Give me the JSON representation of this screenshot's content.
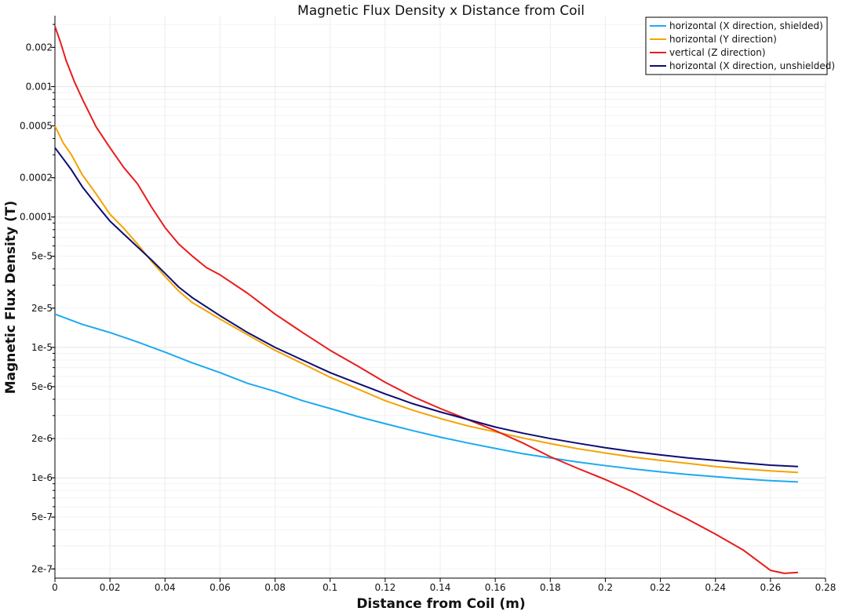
{
  "chart_data": {
    "type": "line",
    "title": "Magnetic Flux Density x Distance from Coil",
    "xlabel": "Distance from Coil (m)",
    "ylabel": "Magnetic Flux Density (T)",
    "xlim": [
      0,
      0.28
    ],
    "ylim": [
      1.7e-07,
      0.0035
    ],
    "yscale": "log",
    "grid": true,
    "legend_position": "top-right",
    "x_ticks": [
      {
        "value": 0,
        "label": "0"
      },
      {
        "value": 0.02,
        "label": "0.02"
      },
      {
        "value": 0.04,
        "label": "0.04"
      },
      {
        "value": 0.06,
        "label": "0.06"
      },
      {
        "value": 0.08,
        "label": "0.08"
      },
      {
        "value": 0.1,
        "label": "0.1"
      },
      {
        "value": 0.12,
        "label": "0.12"
      },
      {
        "value": 0.14,
        "label": "0.14"
      },
      {
        "value": 0.16,
        "label": "0.16"
      },
      {
        "value": 0.18,
        "label": "0.18"
      },
      {
        "value": 0.2,
        "label": "0.2"
      },
      {
        "value": 0.22,
        "label": "0.22"
      },
      {
        "value": 0.24,
        "label": "0.24"
      },
      {
        "value": 0.26,
        "label": "0.26"
      },
      {
        "value": 0.28,
        "label": "0.28"
      }
    ],
    "y_ticks": [
      {
        "value": 0.002,
        "label": "0.002"
      },
      {
        "value": 0.001,
        "label": "0.001"
      },
      {
        "value": 0.0005,
        "label": "0.0005"
      },
      {
        "value": 0.0002,
        "label": "0.0002"
      },
      {
        "value": 0.0001,
        "label": "0.0001"
      },
      {
        "value": 5e-05,
        "label": "5e-5"
      },
      {
        "value": 2e-05,
        "label": "2e-5"
      },
      {
        "value": 1e-05,
        "label": "1e-5"
      },
      {
        "value": 5e-06,
        "label": "5e-6"
      },
      {
        "value": 2e-06,
        "label": "2e-6"
      },
      {
        "value": 1e-06,
        "label": "1e-6"
      },
      {
        "value": 5e-07,
        "label": "5e-7"
      },
      {
        "value": 2e-07,
        "label": "2e-7"
      }
    ],
    "series": [
      {
        "name": "horizontal (X direction, shielded)",
        "color": "#1eaaf0",
        "points": [
          [
            0,
            1.8e-05
          ],
          [
            0.01,
            1.5e-05
          ],
          [
            0.02,
            1.3e-05
          ],
          [
            0.03,
            1.1e-05
          ],
          [
            0.04,
            9.2e-06
          ],
          [
            0.05,
            7.6e-06
          ],
          [
            0.06,
            6.4e-06
          ],
          [
            0.07,
            5.3e-06
          ],
          [
            0.08,
            4.6e-06
          ],
          [
            0.09,
            3.9e-06
          ],
          [
            0.1,
            3.4e-06
          ],
          [
            0.11,
            2.95e-06
          ],
          [
            0.12,
            2.6e-06
          ],
          [
            0.13,
            2.3e-06
          ],
          [
            0.14,
            2.05e-06
          ],
          [
            0.15,
            1.85e-06
          ],
          [
            0.16,
            1.68e-06
          ],
          [
            0.17,
            1.53e-06
          ],
          [
            0.18,
            1.42e-06
          ],
          [
            0.19,
            1.32e-06
          ],
          [
            0.2,
            1.24e-06
          ],
          [
            0.21,
            1.17e-06
          ],
          [
            0.22,
            1.11e-06
          ],
          [
            0.23,
            1.06e-06
          ],
          [
            0.24,
            1.02e-06
          ],
          [
            0.25,
            9.8e-07
          ],
          [
            0.26,
            9.5e-07
          ],
          [
            0.27,
            9.3e-07
          ]
        ]
      },
      {
        "name": "horizontal (Y direction)",
        "color": "#f5a300",
        "points": [
          [
            0,
            0.0005
          ],
          [
            0.003,
            0.00037
          ],
          [
            0.006,
            0.0003
          ],
          [
            0.01,
            0.00021
          ],
          [
            0.015,
            0.00015
          ],
          [
            0.02,
            0.000105
          ],
          [
            0.025,
            8.2e-05
          ],
          [
            0.03,
            6.2e-05
          ],
          [
            0.035,
            4.6e-05
          ],
          [
            0.04,
            3.5e-05
          ],
          [
            0.045,
            2.7e-05
          ],
          [
            0.05,
            2.2e-05
          ],
          [
            0.06,
            1.65e-05
          ],
          [
            0.07,
            1.25e-05
          ],
          [
            0.08,
            9.5e-06
          ],
          [
            0.09,
            7.5e-06
          ],
          [
            0.1,
            5.9e-06
          ],
          [
            0.11,
            4.8e-06
          ],
          [
            0.12,
            3.9e-06
          ],
          [
            0.13,
            3.3e-06
          ],
          [
            0.14,
            2.85e-06
          ],
          [
            0.15,
            2.5e-06
          ],
          [
            0.16,
            2.25e-06
          ],
          [
            0.17,
            2.02e-06
          ],
          [
            0.18,
            1.83e-06
          ],
          [
            0.19,
            1.67e-06
          ],
          [
            0.2,
            1.55e-06
          ],
          [
            0.21,
            1.44e-06
          ],
          [
            0.22,
            1.36e-06
          ],
          [
            0.23,
            1.29e-06
          ],
          [
            0.24,
            1.22e-06
          ],
          [
            0.25,
            1.17e-06
          ],
          [
            0.26,
            1.13e-06
          ],
          [
            0.27,
            1.1e-06
          ]
        ]
      },
      {
        "name": "vertical (Z direction)",
        "color": "#ea1c1c",
        "points": [
          [
            0,
            0.0029
          ],
          [
            0.002,
            0.0022
          ],
          [
            0.004,
            0.0016
          ],
          [
            0.007,
            0.0011
          ],
          [
            0.01,
            0.0008
          ],
          [
            0.015,
            0.00049
          ],
          [
            0.02,
            0.00034
          ],
          [
            0.025,
            0.00024
          ],
          [
            0.03,
            0.00018
          ],
          [
            0.035,
            0.00012
          ],
          [
            0.04,
            8.3e-05
          ],
          [
            0.045,
            6.2e-05
          ],
          [
            0.05,
            5e-05
          ],
          [
            0.055,
            4.1e-05
          ],
          [
            0.06,
            3.6e-05
          ],
          [
            0.07,
            2.6e-05
          ],
          [
            0.08,
            1.8e-05
          ],
          [
            0.09,
            1.3e-05
          ],
          [
            0.1,
            9.5e-06
          ],
          [
            0.11,
            7.2e-06
          ],
          [
            0.12,
            5.4e-06
          ],
          [
            0.13,
            4.2e-06
          ],
          [
            0.14,
            3.4e-06
          ],
          [
            0.15,
            2.8e-06
          ],
          [
            0.16,
            2.3e-06
          ],
          [
            0.17,
            1.85e-06
          ],
          [
            0.18,
            1.45e-06
          ],
          [
            0.19,
            1.18e-06
          ],
          [
            0.2,
            9.7e-07
          ],
          [
            0.21,
            7.8e-07
          ],
          [
            0.22,
            6.1e-07
          ],
          [
            0.23,
            4.8e-07
          ],
          [
            0.24,
            3.7e-07
          ],
          [
            0.25,
            2.8e-07
          ],
          [
            0.26,
            1.95e-07
          ],
          [
            0.265,
            1.85e-07
          ],
          [
            0.27,
            1.88e-07
          ]
        ]
      },
      {
        "name": "horizontal (X direction, unshielded)",
        "color": "#0d0d73",
        "points": [
          [
            0,
            0.00034
          ],
          [
            0.003,
            0.00028
          ],
          [
            0.006,
            0.00023
          ],
          [
            0.01,
            0.00017
          ],
          [
            0.015,
            0.000125
          ],
          [
            0.02,
            9.3e-05
          ],
          [
            0.025,
            7.4e-05
          ],
          [
            0.03,
            5.9e-05
          ],
          [
            0.035,
            4.7e-05
          ],
          [
            0.04,
            3.7e-05
          ],
          [
            0.045,
            2.9e-05
          ],
          [
            0.05,
            2.4e-05
          ],
          [
            0.06,
            1.75e-05
          ],
          [
            0.07,
            1.3e-05
          ],
          [
            0.08,
            1e-05
          ],
          [
            0.09,
            8e-06
          ],
          [
            0.1,
            6.4e-06
          ],
          [
            0.11,
            5.3e-06
          ],
          [
            0.12,
            4.4e-06
          ],
          [
            0.13,
            3.7e-06
          ],
          [
            0.14,
            3.2e-06
          ],
          [
            0.15,
            2.8e-06
          ],
          [
            0.16,
            2.45e-06
          ],
          [
            0.17,
            2.2e-06
          ],
          [
            0.18,
            2e-06
          ],
          [
            0.19,
            1.84e-06
          ],
          [
            0.2,
            1.7e-06
          ],
          [
            0.21,
            1.59e-06
          ],
          [
            0.22,
            1.5e-06
          ],
          [
            0.23,
            1.42e-06
          ],
          [
            0.24,
            1.36e-06
          ],
          [
            0.25,
            1.3e-06
          ],
          [
            0.26,
            1.25e-06
          ],
          [
            0.27,
            1.22e-06
          ]
        ]
      }
    ]
  }
}
